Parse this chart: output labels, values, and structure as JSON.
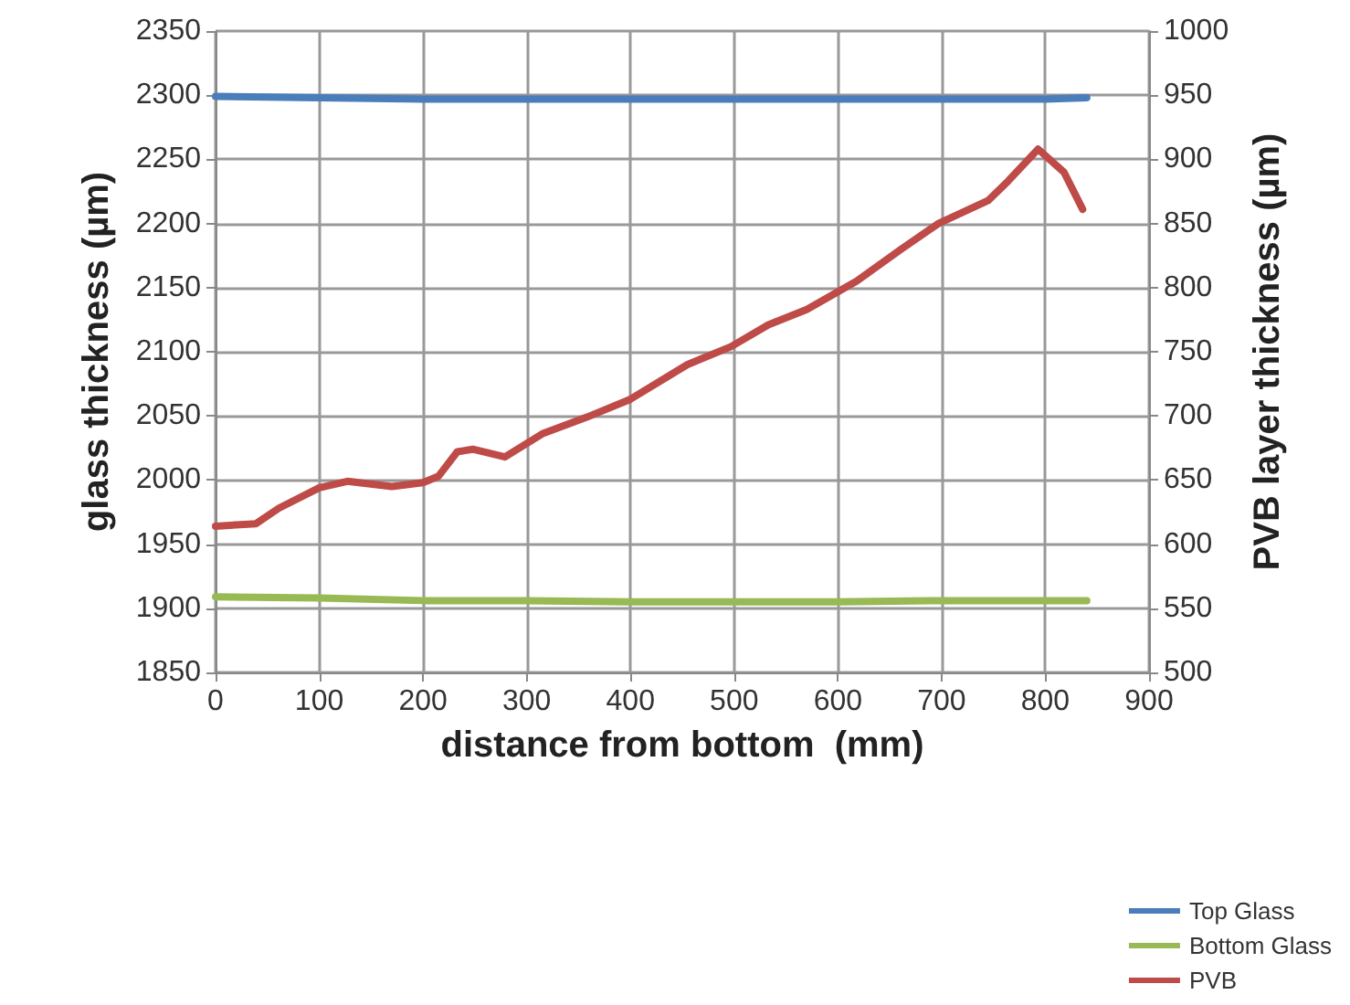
{
  "chart_data": {
    "type": "line",
    "xlabel": "distance from bottom  (mm)",
    "ylabel": "glass thickness (µm)",
    "y2label": "PVB layer thickness (µm)",
    "xlim": [
      0,
      900
    ],
    "xticks": [
      0,
      100,
      200,
      300,
      400,
      500,
      600,
      700,
      800,
      900
    ],
    "ylim": [
      1850,
      2350
    ],
    "yticks": [
      1850,
      1900,
      1950,
      2000,
      2050,
      2100,
      2150,
      2200,
      2250,
      2300,
      2350
    ],
    "y2lim": [
      500,
      1000
    ],
    "y2ticks": [
      500,
      550,
      600,
      650,
      700,
      750,
      800,
      850,
      900,
      950,
      1000
    ],
    "grid": true,
    "legend": "bottom right",
    "marker": "none",
    "line_style": "solid",
    "series": [
      {
        "name": "Top Glass",
        "color": "#4a7ebb",
        "x": [
          0,
          100,
          200,
          300,
          400,
          500,
          600,
          700,
          800,
          840
        ],
        "values": [
          2299,
          2298,
          2297,
          2297,
          2297,
          2297,
          2297,
          2297,
          2297,
          2298
        ]
      },
      {
        "name": "Bottom Glass",
        "color": "#98b954",
        "x": [
          0,
          100,
          200,
          300,
          400,
          500,
          600,
          700,
          800,
          840
        ],
        "values": [
          1909,
          1908,
          1906,
          1906,
          1905,
          1905,
          1905,
          1906,
          1906,
          1906
        ]
      },
      {
        "name": "PVB",
        "color": "#be4b48",
        "axis": "y2",
        "x": [
          0,
          39,
          61,
          100,
          127,
          170,
          200,
          215,
          233,
          248,
          279,
          315,
          358,
          400,
          455,
          497,
          533,
          570,
          618,
          661,
          697,
          745,
          764,
          793,
          818,
          836
        ],
        "values": [
          614,
          616,
          628,
          644,
          649,
          645,
          648,
          653,
          672,
          674,
          668,
          686,
          699,
          713,
          740,
          754,
          771,
          783,
          805,
          830,
          850,
          868,
          883,
          908,
          890,
          861
        ]
      }
    ]
  }
}
